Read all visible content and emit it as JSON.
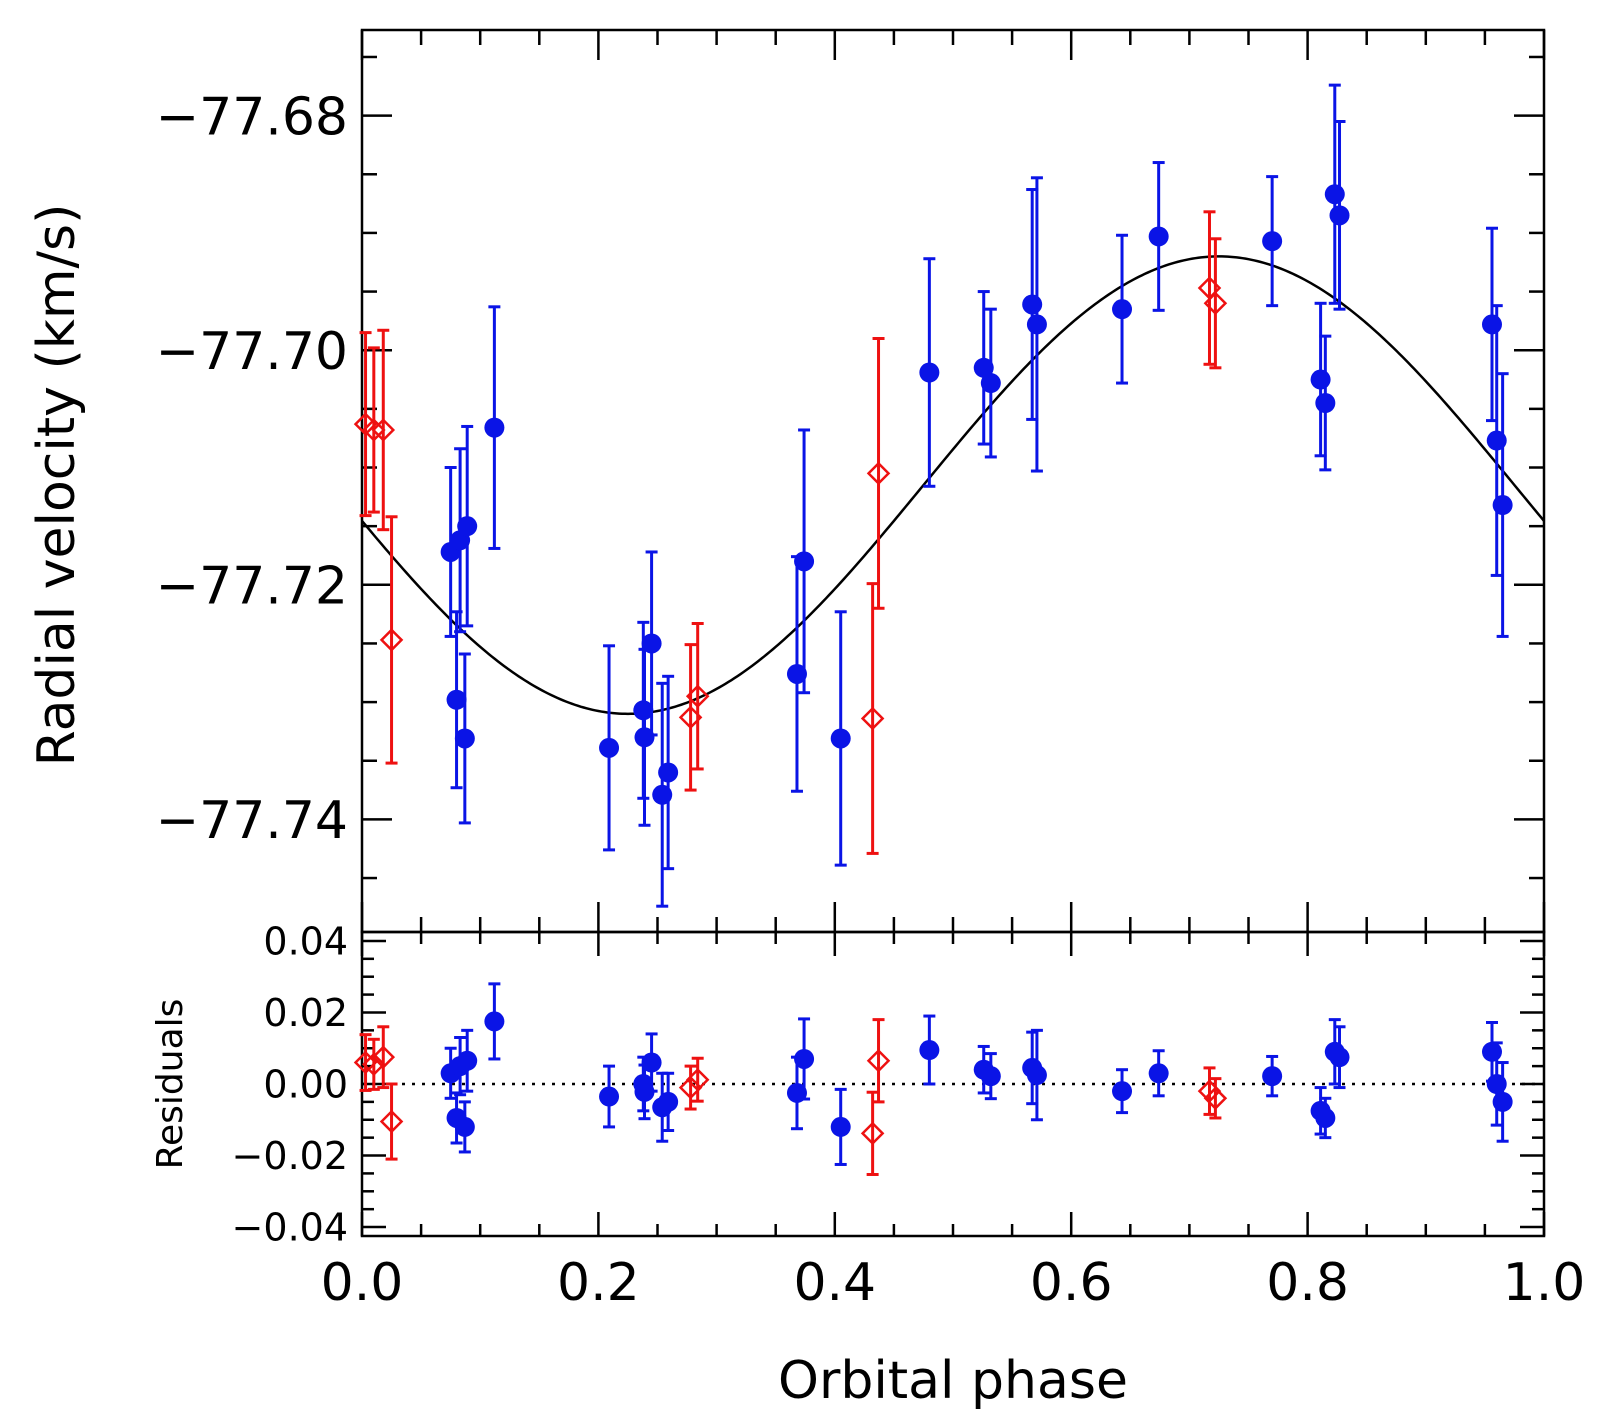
{
  "chart_data": [
    {
      "type": "scatter",
      "panel": "top",
      "xlabel": "",
      "ylabel": "Radial velocity (km/s)",
      "xlim": [
        0.0,
        1.0
      ],
      "ylim": [
        -77.7496,
        -77.6727
      ],
      "y_tick_values": [
        -77.68,
        -77.7,
        -77.72,
        -77.74
      ],
      "y_tick_labels": [
        "−77.68",
        "−77.70",
        "−77.72",
        "−77.74"
      ],
      "grid": false,
      "model_curve": {
        "name": "",
        "type": "sinusoid",
        "offset": -77.7115,
        "amplitude": 0.0195,
        "phase_of_max": 0.725,
        "color": "#000000"
      },
      "series": [
        {
          "name": "",
          "marker": "filled-circle",
          "color": "#0a14e6",
          "points": [
            {
              "x": 0.075,
              "y": -77.7172,
              "err": 0.0072
            },
            {
              "x": 0.08,
              "y": -77.7298,
              "err": 0.0075
            },
            {
              "x": 0.083,
              "y": -77.7162,
              "err": 0.0078
            },
            {
              "x": 0.087,
              "y": -77.7331,
              "err": 0.0072
            },
            {
              "x": 0.089,
              "y": -77.715,
              "err": 0.0085
            },
            {
              "x": 0.112,
              "y": -77.7066,
              "err": 0.0103
            },
            {
              "x": 0.209,
              "y": -77.7339,
              "err": 0.0087
            },
            {
              "x": 0.238,
              "y": -77.7307,
              "err": 0.0075
            },
            {
              "x": 0.239,
              "y": -77.733,
              "err": 0.0075
            },
            {
              "x": 0.245,
              "y": -77.725,
              "err": 0.0078
            },
            {
              "x": 0.254,
              "y": -77.7379,
              "err": 0.0095
            },
            {
              "x": 0.259,
              "y": -77.736,
              "err": 0.0082
            },
            {
              "x": 0.368,
              "y": -77.7276,
              "err": 0.01
            },
            {
              "x": 0.374,
              "y": -77.718,
              "err": 0.0112
            },
            {
              "x": 0.405,
              "y": -77.7331,
              "err": 0.0108
            },
            {
              "x": 0.48,
              "y": -77.7019,
              "err": 0.0097
            },
            {
              "x": 0.526,
              "y": -77.7015,
              "err": 0.0065
            },
            {
              "x": 0.532,
              "y": -77.7028,
              "err": 0.0063
            },
            {
              "x": 0.567,
              "y": -77.6961,
              "err": 0.0098
            },
            {
              "x": 0.571,
              "y": -77.6978,
              "err": 0.0125
            },
            {
              "x": 0.643,
              "y": -77.6965,
              "err": 0.0063
            },
            {
              "x": 0.674,
              "y": -77.6903,
              "err": 0.0063
            },
            {
              "x": 0.77,
              "y": -77.6907,
              "err": 0.0055
            },
            {
              "x": 0.811,
              "y": -77.7025,
              "err": 0.0065
            },
            {
              "x": 0.815,
              "y": -77.7045,
              "err": 0.0057
            },
            {
              "x": 0.823,
              "y": -77.6867,
              "err": 0.0093
            },
            {
              "x": 0.827,
              "y": -77.6885,
              "err": 0.008
            },
            {
              "x": 0.956,
              "y": -77.6978,
              "err": 0.0082
            },
            {
              "x": 0.96,
              "y": -77.7077,
              "err": 0.0115
            },
            {
              "x": 0.965,
              "y": -77.7132,
              "err": 0.0112
            }
          ]
        },
        {
          "name": "",
          "marker": "open-diamond",
          "color": "#ee1111",
          "points": [
            {
              "x": 0.003,
              "y": -77.7063,
              "err": 0.0078
            },
            {
              "x": 0.01,
              "y": -77.7068,
              "err": 0.007
            },
            {
              "x": 0.018,
              "y": -77.7068,
              "err": 0.0085
            },
            {
              "x": 0.025,
              "y": -77.7247,
              "err": 0.0105
            },
            {
              "x": 0.278,
              "y": -77.7313,
              "err": 0.0062
            },
            {
              "x": 0.284,
              "y": -77.7295,
              "err": 0.0062
            },
            {
              "x": 0.432,
              "y": -77.7314,
              "err": 0.0115
            },
            {
              "x": 0.437,
              "y": -77.7105,
              "err": 0.0115
            },
            {
              "x": 0.717,
              "y": -77.6947,
              "err": 0.0065
            },
            {
              "x": 0.722,
              "y": -77.696,
              "err": 0.0055
            }
          ]
        }
      ]
    },
    {
      "type": "scatter",
      "panel": "bottom",
      "xlabel": "Orbital phase",
      "ylabel": "Residuals",
      "xlim": [
        0.0,
        1.0
      ],
      "ylim": [
        -0.0425,
        0.0425
      ],
      "x_tick_values": [
        0.0,
        0.2,
        0.4,
        0.6,
        0.8,
        1.0
      ],
      "x_tick_labels": [
        "0.0",
        "0.2",
        "0.4",
        "0.6",
        "0.8",
        "1.0"
      ],
      "y_tick_values": [
        0.04,
        0.02,
        0.0,
        -0.02,
        -0.04
      ],
      "y_tick_labels": [
        "0.04",
        "0.02",
        "0.00",
        "−0.02",
        "−0.04"
      ],
      "grid": false,
      "zero_line": {
        "y": 0.0,
        "style": "dotted",
        "color": "#000000"
      },
      "series": [
        {
          "name": "",
          "marker": "filled-circle",
          "color": "#0a14e6",
          "points": [
            {
              "x": 0.075,
              "y": 0.003,
              "err": 0.007
            },
            {
              "x": 0.08,
              "y": -0.0095,
              "err": 0.007
            },
            {
              "x": 0.083,
              "y": 0.005,
              "err": 0.008
            },
            {
              "x": 0.087,
              "y": -0.012,
              "err": 0.007
            },
            {
              "x": 0.089,
              "y": 0.0065,
              "err": 0.0085
            },
            {
              "x": 0.112,
              "y": 0.0175,
              "err": 0.0105
            },
            {
              "x": 0.209,
              "y": -0.0035,
              "err": 0.0085
            },
            {
              "x": 0.238,
              "y": 0.0,
              "err": 0.0075
            },
            {
              "x": 0.239,
              "y": -0.0022,
              "err": 0.0075
            },
            {
              "x": 0.245,
              "y": 0.006,
              "err": 0.008
            },
            {
              "x": 0.254,
              "y": -0.0065,
              "err": 0.0095
            },
            {
              "x": 0.259,
              "y": -0.005,
              "err": 0.008
            },
            {
              "x": 0.368,
              "y": -0.0025,
              "err": 0.01
            },
            {
              "x": 0.374,
              "y": 0.007,
              "err": 0.0112
            },
            {
              "x": 0.405,
              "y": -0.012,
              "err": 0.0105
            },
            {
              "x": 0.48,
              "y": 0.0095,
              "err": 0.0095
            },
            {
              "x": 0.526,
              "y": 0.004,
              "err": 0.0065
            },
            {
              "x": 0.532,
              "y": 0.0022,
              "err": 0.0063
            },
            {
              "x": 0.567,
              "y": 0.0045,
              "err": 0.01
            },
            {
              "x": 0.571,
              "y": 0.0025,
              "err": 0.0125
            },
            {
              "x": 0.643,
              "y": -0.002,
              "err": 0.006
            },
            {
              "x": 0.674,
              "y": 0.003,
              "err": 0.0063
            },
            {
              "x": 0.77,
              "y": 0.0022,
              "err": 0.0055
            },
            {
              "x": 0.811,
              "y": -0.0075,
              "err": 0.0065
            },
            {
              "x": 0.815,
              "y": -0.0095,
              "err": 0.0055
            },
            {
              "x": 0.823,
              "y": 0.009,
              "err": 0.009
            },
            {
              "x": 0.827,
              "y": 0.0075,
              "err": 0.0085
            },
            {
              "x": 0.956,
              "y": 0.009,
              "err": 0.0082
            },
            {
              "x": 0.96,
              "y": 0.0,
              "err": 0.0115
            },
            {
              "x": 0.965,
              "y": -0.005,
              "err": 0.011
            }
          ]
        },
        {
          "name": "",
          "marker": "open-diamond",
          "color": "#ee1111",
          "points": [
            {
              "x": 0.003,
              "y": 0.006,
              "err": 0.0078
            },
            {
              "x": 0.01,
              "y": 0.0055,
              "err": 0.007
            },
            {
              "x": 0.018,
              "y": 0.0075,
              "err": 0.0085
            },
            {
              "x": 0.025,
              "y": -0.0105,
              "err": 0.0105
            },
            {
              "x": 0.278,
              "y": -0.001,
              "err": 0.006
            },
            {
              "x": 0.284,
              "y": 0.0012,
              "err": 0.006
            },
            {
              "x": 0.432,
              "y": -0.0138,
              "err": 0.0115
            },
            {
              "x": 0.437,
              "y": 0.0065,
              "err": 0.0115
            },
            {
              "x": 0.717,
              "y": -0.002,
              "err": 0.0065
            },
            {
              "x": 0.722,
              "y": -0.004,
              "err": 0.0055
            }
          ]
        }
      ]
    }
  ]
}
